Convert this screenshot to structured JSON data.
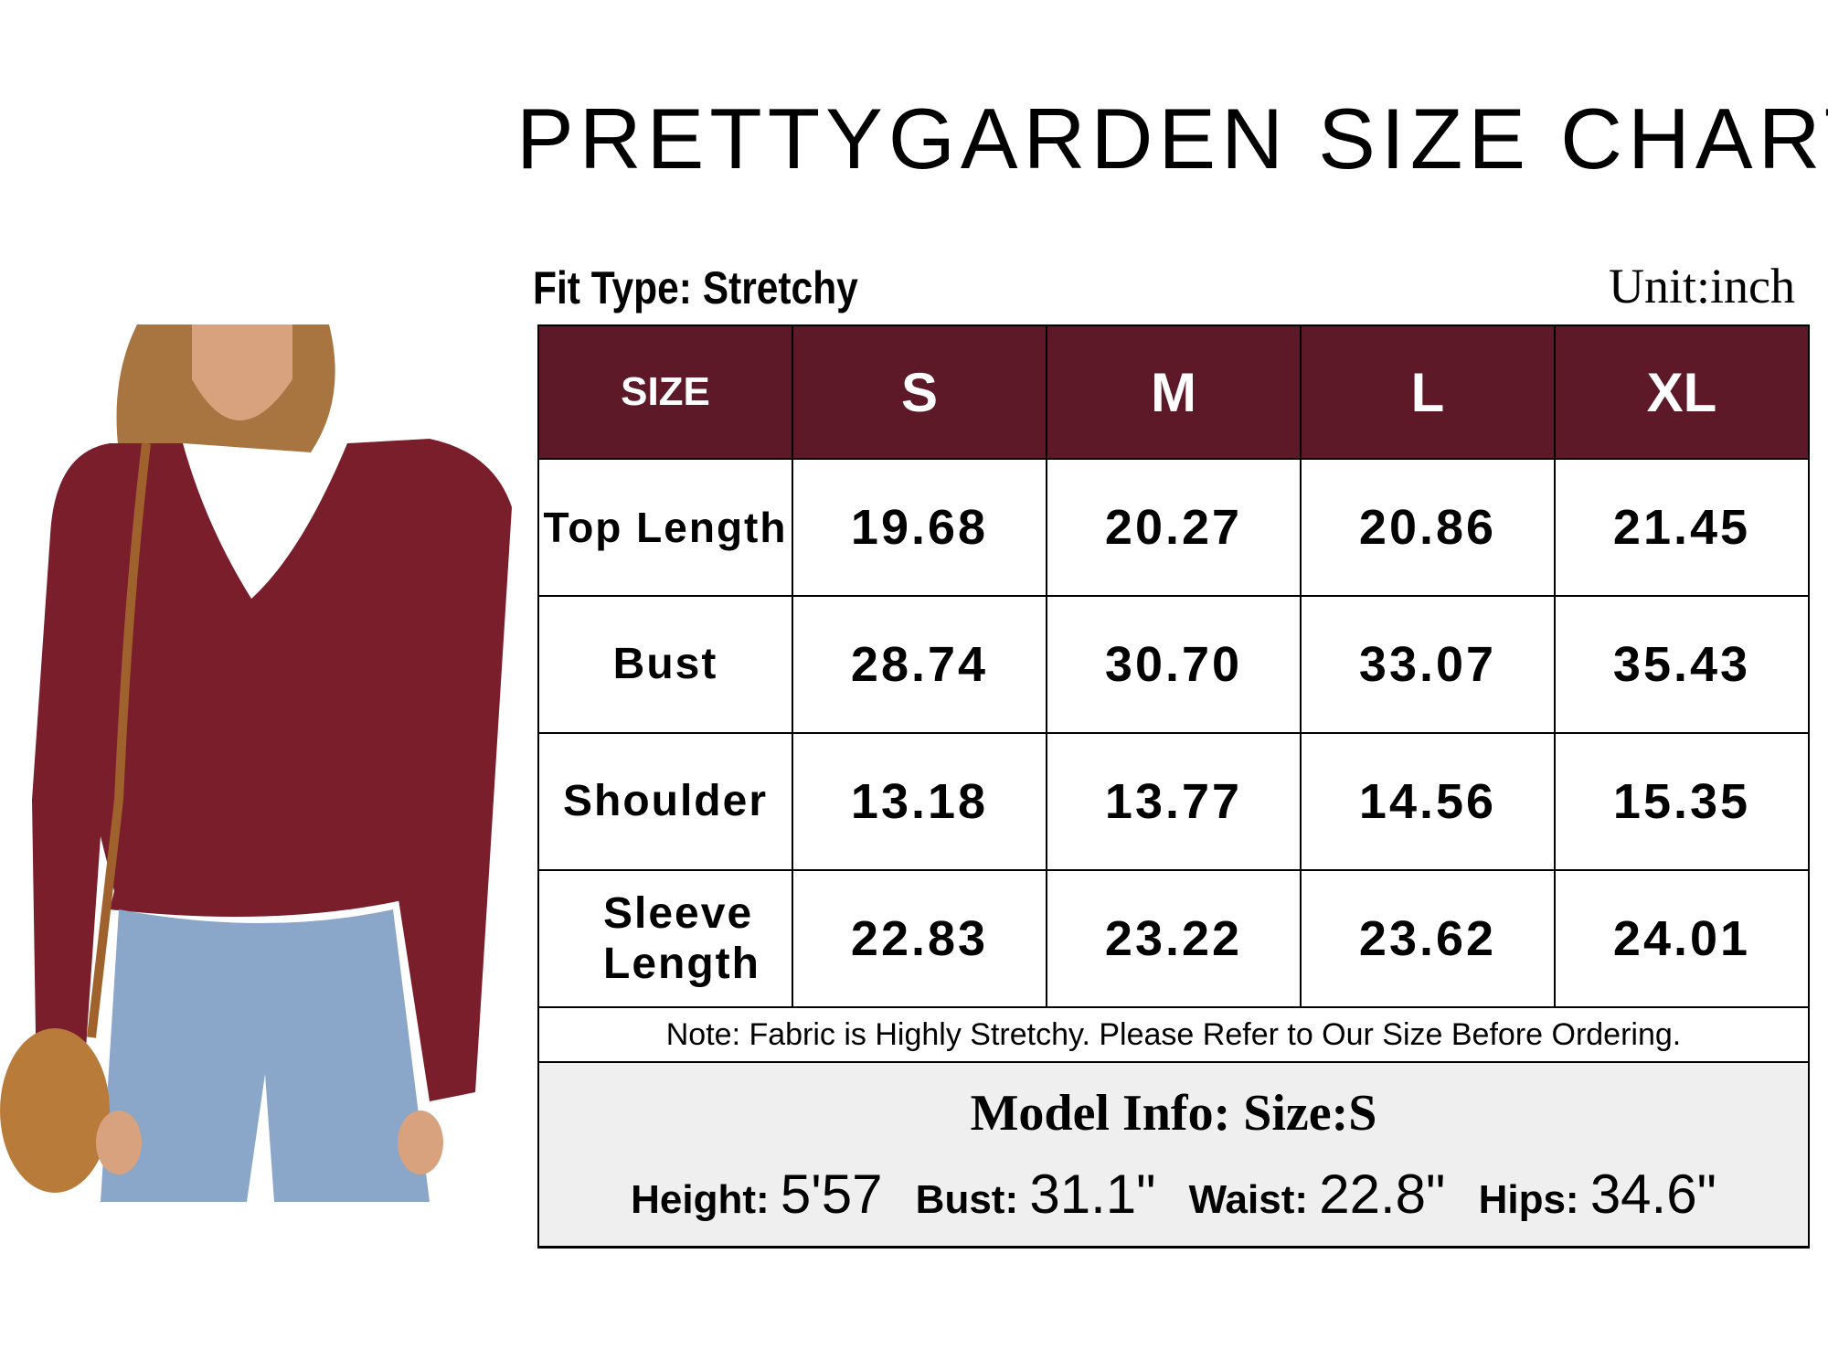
{
  "title": "PRETTYGARDEN SIZE CHART",
  "fit_type": "Fit Type: Stretchy",
  "unit": "Unit:inch",
  "colors": {
    "header_bg": "#5e1928",
    "model_bg": "#efefef",
    "sweater": "#7a1e2c",
    "jeans": "#8aa6c8"
  },
  "photo": {
    "subject": "model wearing burgundy ribbed wrap top, jeans and round rattan bag"
  },
  "table": {
    "headers": [
      "SIZE",
      "S",
      "M",
      "L",
      "XL"
    ],
    "rows": [
      {
        "label": "Top Length",
        "values": [
          "19.68",
          "20.27",
          "20.86",
          "21.45"
        ]
      },
      {
        "label": "Bust",
        "values": [
          "28.74",
          "30.70",
          "33.07",
          "35.43"
        ]
      },
      {
        "label": "Shoulder",
        "values": [
          "13.18",
          "13.77",
          "14.56",
          "15.35"
        ]
      },
      {
        "label": "Sleeve Length",
        "values": [
          "22.83",
          "23.22",
          "23.62",
          "24.01"
        ]
      }
    ],
    "note": "Note: Fabric is Highly Stretchy. Please Refer to Our Size Before Ordering."
  },
  "model_info": {
    "title": "Model Info: Size:S",
    "height_label": "Height:",
    "height": "5'57",
    "bust_label": "Bust:",
    "bust": "31.1\"",
    "waist_label": "Waist:",
    "waist": "22.8\"",
    "hips_label": "Hips:",
    "hips": "34.6\""
  }
}
